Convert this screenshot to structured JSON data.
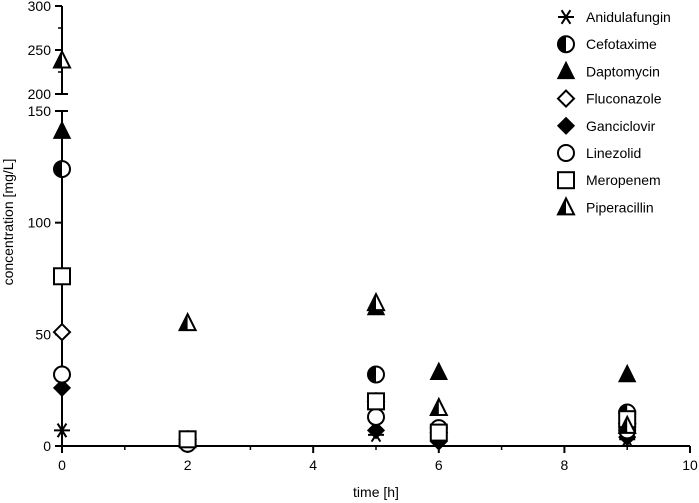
{
  "chart_data": {
    "type": "scatter",
    "xlabel": "time [h]",
    "ylabel": "concentration [mg/L]",
    "xlim": [
      0,
      10
    ],
    "x_ticks": [
      0,
      2,
      4,
      6,
      8,
      10
    ],
    "y_axis": "broken",
    "y_lower_range": [
      0,
      150
    ],
    "y_upper_range": [
      200,
      300
    ],
    "y_ticks_lower": [
      0,
      50,
      100,
      150
    ],
    "y_ticks_upper": [
      200,
      250,
      300
    ],
    "grid": false,
    "legend_position": "top-right",
    "series": [
      {
        "name": "Anidulafungin",
        "marker": "asterisk",
        "points": [
          [
            0,
            7
          ],
          [
            5,
            5
          ],
          [
            6,
            3
          ],
          [
            9,
            3
          ]
        ]
      },
      {
        "name": "Cefotaxime",
        "marker": "half-circle",
        "points": [
          [
            0,
            124
          ],
          [
            5,
            32
          ],
          [
            9,
            15
          ]
        ]
      },
      {
        "name": "Daptomycin",
        "marker": "filled-triangle",
        "points": [
          [
            0,
            141
          ],
          [
            5,
            62
          ],
          [
            6,
            33
          ],
          [
            9,
            32
          ]
        ]
      },
      {
        "name": "Fluconazole",
        "marker": "open-diamond",
        "points": [
          [
            0,
            51
          ],
          [
            2,
            3
          ],
          [
            5,
            20
          ],
          [
            6,
            6
          ],
          [
            9,
            10
          ]
        ]
      },
      {
        "name": "Ganciclovir",
        "marker": "filled-diamond",
        "points": [
          [
            0,
            26
          ],
          [
            2,
            2
          ],
          [
            5,
            7
          ],
          [
            6,
            2
          ],
          [
            9,
            4
          ]
        ]
      },
      {
        "name": "Linezolid",
        "marker": "open-circle",
        "points": [
          [
            0,
            32
          ],
          [
            2,
            1
          ],
          [
            5,
            13
          ],
          [
            6,
            8
          ],
          [
            9,
            7
          ]
        ]
      },
      {
        "name": "Meropenem",
        "marker": "open-square",
        "points": [
          [
            0,
            76
          ],
          [
            2,
            3
          ],
          [
            5,
            20
          ],
          [
            6,
            6
          ],
          [
            9,
            12
          ]
        ]
      },
      {
        "name": "Piperacillin",
        "marker": "half-triangle",
        "points": [
          [
            0,
            238
          ],
          [
            2,
            55
          ],
          [
            5,
            64
          ],
          [
            6,
            17
          ],
          [
            9,
            9
          ]
        ]
      }
    ]
  }
}
